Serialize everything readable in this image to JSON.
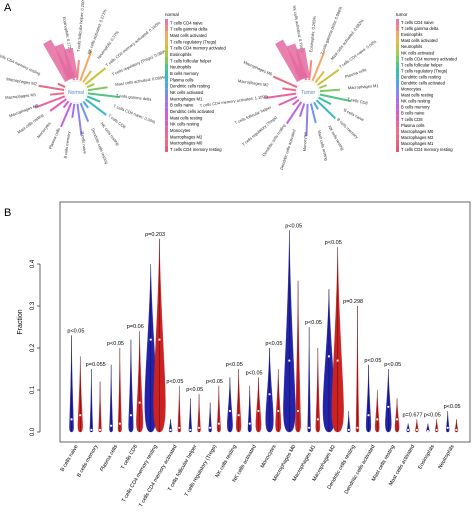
{
  "panels": {
    "a_label": "A",
    "b_label": "B"
  },
  "radial_normal": {
    "center_label": "Normal",
    "legend_title": "normal",
    "legend": [
      "T cells CD4 naive",
      "T cells gamma delta",
      "Mast cells activated",
      "T cells regulatory (Tregs)",
      "T cells CD4 memory activated",
      "Eosinophils",
      "T cells follicular helper",
      "Neutrophils",
      "B cells memory",
      "Plasma cells",
      "Dendritic cells resting",
      "NK cells activated",
      "Macrophages M1",
      "B cells naive",
      "Dendritic cells activated",
      "Mast cells resting",
      "NK cells resting",
      "Monocytes",
      "Macrophages M2",
      "Macrophages M0",
      "T cells CD4 memory resting"
    ],
    "spokes": [
      "Eosinophils: 0.172%",
      "T cells follicular helper: 0.200%",
      "NK cells activated: 0.271%",
      "Neutrophils: 0.37%",
      "T cells CD4 memory activated: 0.165%",
      "T cells regulatory (Tregs): 0.089%",
      "Mast cells activated: 0.089%",
      "T cells gamma delta",
      "T cells CD4 naive: 0.00%",
      "T cells CD8",
      "NK cells resting",
      "Dendritic cells resting",
      "B cells naive",
      "B cells memory",
      "Plasma cells",
      "Monocytes",
      "Mast cells resting",
      "Macrophages M0",
      "Macrophages M1",
      "Macrophages M2",
      "T cells CD4 memory resting"
    ]
  },
  "radial_tumor": {
    "center_label": "Tumor",
    "legend_title": "tumor",
    "legend": [
      "T cells CD4 naive",
      "T cells gamma delta",
      "Eosinophils",
      "Mast cells activated",
      "Neutrophils",
      "NK cells activated",
      "T cells CD4 memory activated",
      "T cells follicular helper",
      "T cells regulatory (Tregs)",
      "Dendritic cells resting",
      "Dendritic cells activated",
      "Monocytes",
      "Mast cells resting",
      "NK cells resting",
      "B cells memory",
      "B cells naive",
      "T cells CD8",
      "Plasma cells",
      "Macrophages M0",
      "Macrophages M2",
      "Macrophages M1",
      "T cells CD4 memory resting"
    ],
    "spokes": [
      "NK cells activated: 0.794%",
      "Eosinophils: 0.265%",
      "T cells gamma delta: 0.086%",
      "Mast cells activated: 0.082%",
      "T cells CD4 naive: 0.00%",
      "Plasma cells",
      "Macrophages M1",
      "T cells CD8",
      "B cells naive",
      "B cells memory",
      "NK cells resting",
      "Mast cells resting",
      "Monocytes",
      "Dendritic cells activated",
      "Dendritic cells resting",
      "T cells regulatory (Tregs)",
      "T cells follicular helper",
      "T cells CD4 memory activated: 1.109%",
      "Macrophages M2",
      "Macrophages M0"
    ]
  },
  "chart_data": {
    "type": "violin",
    "title": "",
    "xlabel": "",
    "ylabel": "Fraction",
    "ylim": [
      0,
      0.5
    ],
    "yticks": [
      "0.0",
      "0.1",
      "0.2",
      "0.3",
      "0.4"
    ],
    "ytick_values": [
      0.0,
      0.1,
      0.2,
      0.3,
      0.4
    ],
    "colors": {
      "normal": "#2222aa",
      "tumor": "#cc2222"
    },
    "categories": [
      "B cells naive",
      "B cells memory",
      "Plasma cells",
      "T cells CD8",
      "T cells CD4 memory resting",
      "T cells CD4 memory activated",
      "T cells follicular helper",
      "T cells regulatory (Tregs)",
      "NK cells resting",
      "NK cells activated",
      "Monocytes",
      "Macrophages M0",
      "Macrophages M1",
      "Macrophages M2",
      "Dendritic cells resting",
      "Dendritic cells activated",
      "Mast cells resting",
      "Mast cells activated",
      "Eosinophils",
      "Neutrophils"
    ],
    "pvalues": [
      "p<0.05",
      "p=0.055",
      "p<0.05",
      "p=0.06",
      "p=0.203",
      "p<0.05",
      "p<0.05",
      "p<0.05",
      "p<0.05",
      "p<0.05",
      "p<0.05",
      "p<0.05",
      "p<0.05",
      "p<0.05",
      "p=0.298",
      "p<0.05",
      "p<0.05",
      "p=0.677",
      "p<0.05",
      "p<0.05"
    ],
    "series": [
      {
        "name": "normal",
        "medians": [
          0.03,
          0.005,
          0.015,
          0.04,
          0.22,
          0.005,
          0.005,
          0.01,
          0.05,
          0.02,
          0.09,
          0.17,
          0.01,
          0.18,
          0.005,
          0.04,
          0.06,
          0.005,
          0.002,
          0.01
        ],
        "max": [
          0.23,
          0.15,
          0.16,
          0.22,
          0.4,
          0.03,
          0.08,
          0.07,
          0.13,
          0.11,
          0.2,
          0.48,
          0.25,
          0.34,
          0.05,
          0.16,
          0.15,
          0.02,
          0.02,
          0.05
        ]
      },
      {
        "name": "tumor",
        "medians": [
          0.04,
          0.005,
          0.02,
          0.07,
          0.22,
          0.01,
          0.01,
          0.02,
          0.04,
          0.05,
          0.05,
          0.05,
          0.03,
          0.17,
          0.01,
          0.03,
          0.03,
          0.005,
          0.005,
          0.005
        ],
        "max": [
          0.18,
          0.12,
          0.2,
          0.24,
          0.46,
          0.11,
          0.09,
          0.11,
          0.15,
          0.13,
          0.15,
          0.36,
          0.2,
          0.44,
          0.3,
          0.1,
          0.08,
          0.03,
          0.03,
          0.03
        ]
      }
    ]
  }
}
